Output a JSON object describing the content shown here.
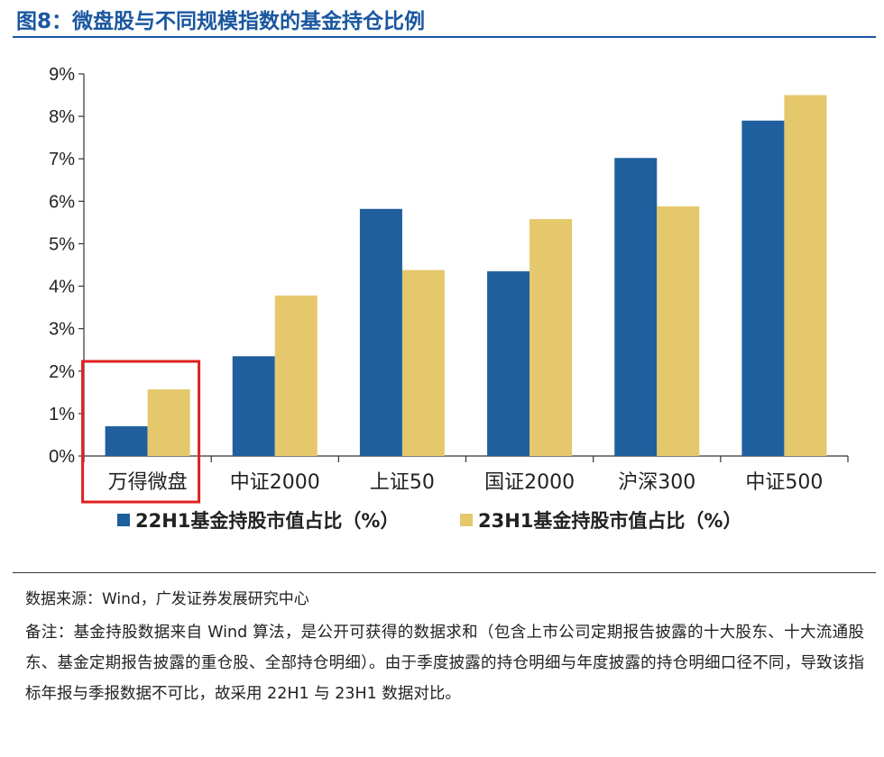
{
  "figure_title": "图8：微盘股与不同规模指数的基金持仓比例",
  "source_text": "数据来源：Wind，广发证券发展研究中心",
  "note_text": "备注：基金持股数据来自 Wind 算法，是公开可获得的数据求和（包含上市公司定期报告披露的十大股东、十大流通股东、基金定期报告披露的重仓股、全部持仓明细）。由于季度披露的持仓明细与年度披露的持仓明细口径不同，导致该指标年报与季报数据不可比，故采用 22H1 与 23H1 数据对比。",
  "chart_data": {
    "type": "bar",
    "categories": [
      "万得微盘",
      "中证2000",
      "上证50",
      "国证2000",
      "沪深300",
      "中证500"
    ],
    "series": [
      {
        "name": "22H1基金持股市值占比（%）",
        "color": "#1f5f9e",
        "values": [
          0.7,
          2.35,
          5.82,
          4.35,
          7.02,
          7.9
        ]
      },
      {
        "name": "23H1基金持股市值占比（%）",
        "color": "#e5c86b",
        "values": [
          1.57,
          3.78,
          4.38,
          5.58,
          5.88,
          8.5
        ]
      }
    ],
    "y_ticks": [
      "0%",
      "1%",
      "2%",
      "3%",
      "4%",
      "5%",
      "6%",
      "7%",
      "8%",
      "9%"
    ],
    "ylim": [
      0,
      9
    ],
    "grid": false,
    "legend_position": "bottom",
    "highlight_category": "万得微盘",
    "highlight_color": "#e02020"
  }
}
